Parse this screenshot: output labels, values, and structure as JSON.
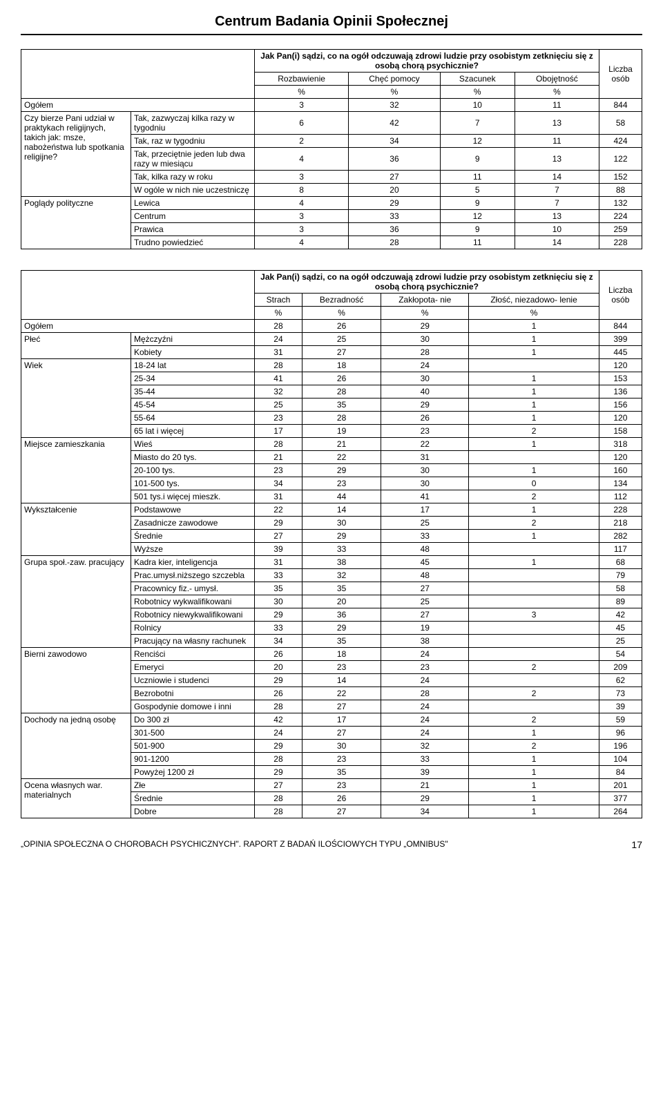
{
  "header": "Centrum Badania Opinii Społecznej",
  "table1": {
    "question": "Jak Pan(i) sądzi, co na ogół odczuwają zdrowi ludzie przy osobistym zetknięciu się z osobą chorą psychicznie?",
    "col_headers": [
      "Rozbawienie",
      "Chęć pomocy",
      "Szacunek",
      "Obojętność"
    ],
    "liczba_label": "Liczba osób",
    "percent_row": [
      "%",
      "%",
      "%",
      "%"
    ],
    "total_label": "Ogółem",
    "total_row": [
      3,
      32,
      10,
      11,
      844
    ],
    "groups": [
      {
        "group_label": "Czy bierze Pani udział w praktykach religijnych, takich jak: msze, nabożeństwa lub spotkania religijne?",
        "rows": [
          {
            "label": "Tak, zazwyczaj kilka razy w tygodniu",
            "vals": [
              6,
              42,
              7,
              13,
              58
            ]
          },
          {
            "label": "Tak, raz w tygodniu",
            "vals": [
              2,
              34,
              12,
              11,
              424
            ]
          },
          {
            "label": "Tak, przeciętnie jeden lub dwa razy w miesiącu",
            "vals": [
              4,
              36,
              9,
              13,
              122
            ]
          },
          {
            "label": "Tak, kilka razy w roku",
            "vals": [
              3,
              27,
              11,
              14,
              152
            ]
          },
          {
            "label": "W ogóle w nich nie uczestniczę",
            "vals": [
              8,
              20,
              5,
              7,
              88
            ]
          }
        ]
      },
      {
        "group_label": "Poglądy polityczne",
        "rows": [
          {
            "label": "Lewica",
            "vals": [
              4,
              29,
              9,
              7,
              132
            ]
          },
          {
            "label": "Centrum",
            "vals": [
              3,
              33,
              12,
              13,
              224
            ]
          },
          {
            "label": "Prawica",
            "vals": [
              3,
              36,
              9,
              10,
              259
            ]
          },
          {
            "label": "Trudno powiedzieć",
            "vals": [
              4,
              28,
              11,
              14,
              228
            ]
          }
        ]
      }
    ]
  },
  "table2": {
    "question": "Jak Pan(i) sądzi, co na ogół odczuwają zdrowi ludzie przy osobistym zetknięciu się z osobą chorą psychicznie?",
    "col_headers": [
      "Strach",
      "Bezradność",
      "Zakłopota-\nnie",
      "Złość, niezadowo-\nlenie"
    ],
    "liczba_label": "Liczba osób",
    "percent_row": [
      "%",
      "%",
      "%",
      "%"
    ],
    "total_label": "Ogółem",
    "total_row": [
      28,
      26,
      29,
      1,
      844
    ],
    "groups": [
      {
        "group_label": "Płeć",
        "rows": [
          {
            "label": "Mężczyźni",
            "vals": [
              24,
              25,
              30,
              1,
              399
            ]
          },
          {
            "label": "Kobiety",
            "vals": [
              31,
              27,
              28,
              1,
              445
            ]
          }
        ]
      },
      {
        "group_label": "Wiek",
        "rows": [
          {
            "label": "18-24 lat",
            "vals": [
              28,
              18,
              24,
              "",
              120
            ]
          },
          {
            "label": "25-34",
            "vals": [
              41,
              26,
              30,
              1,
              153
            ]
          },
          {
            "label": "35-44",
            "vals": [
              32,
              28,
              40,
              1,
              136
            ]
          },
          {
            "label": "45-54",
            "vals": [
              25,
              35,
              29,
              1,
              156
            ]
          },
          {
            "label": "55-64",
            "vals": [
              23,
              28,
              26,
              1,
              120
            ]
          },
          {
            "label": "65 lat i więcej",
            "vals": [
              17,
              19,
              23,
              2,
              158
            ]
          }
        ]
      },
      {
        "group_label": "Miejsce zamieszkania",
        "rows": [
          {
            "label": "Wieś",
            "vals": [
              28,
              21,
              22,
              1,
              318
            ]
          },
          {
            "label": "Miasto do 20 tys.",
            "vals": [
              21,
              22,
              31,
              "",
              120
            ]
          },
          {
            "label": "20-100 tys.",
            "vals": [
              23,
              29,
              30,
              1,
              160
            ]
          },
          {
            "label": "101-500 tys.",
            "vals": [
              34,
              23,
              30,
              0,
              134
            ]
          },
          {
            "label": "501 tys.i więcej mieszk.",
            "vals": [
              31,
              44,
              41,
              2,
              112
            ]
          }
        ]
      },
      {
        "group_label": "Wykształcenie",
        "rows": [
          {
            "label": "Podstawowe",
            "vals": [
              22,
              14,
              17,
              1,
              228
            ]
          },
          {
            "label": "Zasadnicze zawodowe",
            "vals": [
              29,
              30,
              25,
              2,
              218
            ]
          },
          {
            "label": "Średnie",
            "vals": [
              27,
              29,
              33,
              1,
              282
            ]
          },
          {
            "label": "Wyższe",
            "vals": [
              39,
              33,
              48,
              "",
              117
            ]
          }
        ]
      },
      {
        "group_label": "Grupa społ.-zaw. pracujący",
        "rows": [
          {
            "label": "Kadra kier, inteligencja",
            "vals": [
              31,
              38,
              45,
              1,
              68
            ]
          },
          {
            "label": "Prac.umysł.niższego szczebla",
            "vals": [
              33,
              32,
              48,
              "",
              79
            ]
          },
          {
            "label": "Pracownicy fiz.- umysł.",
            "vals": [
              35,
              35,
              27,
              "",
              58
            ]
          },
          {
            "label": "Robotnicy wykwalifikowani",
            "vals": [
              30,
              20,
              25,
              "",
              89
            ]
          },
          {
            "label": "Robotnicy niewykwalifikowani",
            "vals": [
              29,
              36,
              27,
              3,
              42
            ]
          },
          {
            "label": "Rolnicy",
            "vals": [
              33,
              29,
              19,
              "",
              45
            ]
          },
          {
            "label": "Pracujący na własny rachunek",
            "vals": [
              34,
              35,
              38,
              "",
              25
            ]
          }
        ]
      },
      {
        "group_label": "Bierni zawodowo",
        "rows": [
          {
            "label": "Renciści",
            "vals": [
              26,
              18,
              24,
              "",
              54
            ]
          },
          {
            "label": "Emeryci",
            "vals": [
              20,
              23,
              23,
              2,
              209
            ]
          },
          {
            "label": "Uczniowie i studenci",
            "vals": [
              29,
              14,
              24,
              "",
              62
            ]
          },
          {
            "label": "Bezrobotni",
            "vals": [
              26,
              22,
              28,
              2,
              73
            ]
          },
          {
            "label": "Gospodynie domowe i inni",
            "vals": [
              28,
              27,
              24,
              "",
              39
            ]
          }
        ]
      },
      {
        "group_label": "Dochody na jedną osobę",
        "rows": [
          {
            "label": "Do 300 zł",
            "vals": [
              42,
              17,
              24,
              2,
              59
            ]
          },
          {
            "label": "301-500",
            "vals": [
              24,
              27,
              24,
              1,
              96
            ]
          },
          {
            "label": "501-900",
            "vals": [
              29,
              30,
              32,
              2,
              196
            ]
          },
          {
            "label": "901-1200",
            "vals": [
              28,
              23,
              33,
              1,
              104
            ]
          },
          {
            "label": "Powyżej 1200 zł",
            "vals": [
              29,
              35,
              39,
              1,
              84
            ]
          }
        ]
      },
      {
        "group_label": "Ocena własnych war. materialnych",
        "rows": [
          {
            "label": "Złe",
            "vals": [
              27,
              23,
              21,
              1,
              201
            ]
          },
          {
            "label": "Średnie",
            "vals": [
              28,
              26,
              29,
              1,
              377
            ]
          },
          {
            "label": "Dobre",
            "vals": [
              28,
              27,
              34,
              1,
              264
            ]
          }
        ]
      }
    ]
  },
  "footer": {
    "text_prefix": "„OPINIA SPOŁECZNA O CHOROBACH PSYCHICZNYCH\". ",
    "text_suffix": "RAPORT Z BADAŃ ILOŚCIOWYCH TYPU „OMNIBUS\"",
    "page": "17"
  }
}
